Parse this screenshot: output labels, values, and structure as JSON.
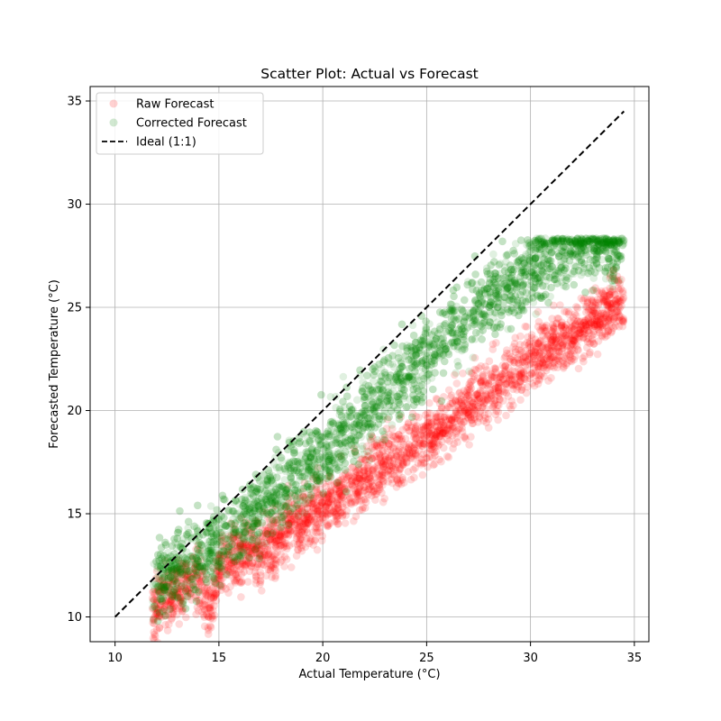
{
  "chart_data": {
    "type": "scatter",
    "title": "Scatter Plot: Actual vs Forecast",
    "xlabel": "Actual Temperature (°C)",
    "ylabel": "Forecasted Temperature (°C)",
    "xlim": [
      8.8,
      35.7
    ],
    "ylim": [
      8.8,
      35.7
    ],
    "xticks": [
      10,
      15,
      20,
      25,
      30,
      35
    ],
    "yticks": [
      10,
      15,
      20,
      25,
      30,
      35
    ],
    "grid": true,
    "legend_position": "top-left",
    "series": [
      {
        "name": "Raw Forecast",
        "kind": "scatter",
        "color": "#ff0000",
        "opacity": 0.15,
        "x_range": [
          11.8,
          34.5
        ],
        "relation": "y ≈ 0.62·x + 3.4 (segmented, spread ±1.2)",
        "points": [
          [
            12,
            10.5
          ],
          [
            13,
            11.3
          ],
          [
            14,
            11.9
          ],
          [
            14.6,
            10.2
          ],
          [
            15,
            12.3
          ],
          [
            16,
            12.9
          ],
          [
            17,
            13.2
          ],
          [
            18,
            13.9
          ],
          [
            19,
            14.7
          ],
          [
            20,
            15.4
          ],
          [
            21,
            16.0
          ],
          [
            22,
            16.6
          ],
          [
            23,
            17.4
          ],
          [
            24,
            18.0
          ],
          [
            25,
            18.7
          ],
          [
            26,
            19.4
          ],
          [
            27,
            20.2
          ],
          [
            28,
            20.9
          ],
          [
            29,
            21.8
          ],
          [
            30,
            22.5
          ],
          [
            31,
            23.2
          ],
          [
            32,
            23.6
          ],
          [
            33,
            24.5
          ],
          [
            34,
            25.1
          ]
        ]
      },
      {
        "name": "Corrected Forecast",
        "kind": "scatter",
        "color": "#008000",
        "opacity": 0.12,
        "x_range": [
          11.8,
          34.5
        ],
        "relation": "y rises ~0.88·x, saturating near 28.2 (spread ±1.5)",
        "points": [
          [
            12,
            11.8
          ],
          [
            14,
            12.8
          ],
          [
            16,
            14.4
          ],
          [
            18,
            16.2
          ],
          [
            20,
            18.0
          ],
          [
            22,
            19.9
          ],
          [
            24,
            21.8
          ],
          [
            26,
            23.6
          ],
          [
            28,
            25.4
          ],
          [
            30,
            26.9
          ],
          [
            32,
            27.9
          ],
          [
            34,
            28.2
          ]
        ]
      },
      {
        "name": "Ideal (1:1)",
        "kind": "line",
        "color": "#000000",
        "dash": "dashed",
        "x": [
          10,
          34.5
        ],
        "y": [
          10,
          34.5
        ]
      }
    ]
  }
}
